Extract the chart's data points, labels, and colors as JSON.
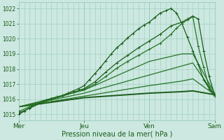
{
  "title": "Pression niveau de la mer( hPa )",
  "ylabel_values": [
    1015,
    1016,
    1017,
    1018,
    1019,
    1020,
    1021,
    1022
  ],
  "ylim": [
    1014.6,
    1022.4
  ],
  "background_color": "#cce8e0",
  "grid_color": "#99ccbb",
  "line_color_dark": "#1a5c1a",
  "x_ticks": [
    0,
    36,
    72,
    108
  ],
  "x_tick_labels": [
    "Mer",
    "Jeu",
    "Ven",
    "Sam"
  ],
  "total_hours": 108,
  "series": [
    {
      "x": [
        0,
        3,
        6,
        9,
        12,
        15,
        18,
        21,
        24,
        27,
        30,
        33,
        36,
        39,
        42,
        45,
        48,
        51,
        54,
        57,
        60,
        63,
        66,
        69,
        72,
        75,
        78,
        81,
        84,
        87,
        90,
        93,
        96,
        99,
        102,
        105,
        108
      ],
      "y": [
        1015.0,
        1015.2,
        1015.45,
        1015.65,
        1015.8,
        1015.95,
        1016.05,
        1016.15,
        1016.25,
        1016.4,
        1016.55,
        1016.7,
        1016.9,
        1017.3,
        1017.7,
        1018.1,
        1018.55,
        1019.0,
        1019.4,
        1019.7,
        1020.05,
        1020.35,
        1020.65,
        1020.9,
        1021.1,
        1021.4,
        1021.7,
        1021.85,
        1022.0,
        1021.7,
        1021.0,
        1020.1,
        1019.2,
        1018.3,
        1017.3,
        1016.7,
        1016.2
      ],
      "style": "marker",
      "color": "#1a5c1a",
      "lw": 0.9,
      "ms": 2.5
    },
    {
      "x": [
        0,
        6,
        12,
        18,
        24,
        30,
        36,
        42,
        48,
        54,
        60,
        66,
        72,
        78,
        84,
        90,
        93,
        96,
        99,
        102,
        105,
        108
      ],
      "y": [
        1015.1,
        1015.4,
        1015.75,
        1016.0,
        1016.2,
        1016.45,
        1016.7,
        1017.15,
        1017.8,
        1018.4,
        1018.9,
        1019.4,
        1019.85,
        1020.3,
        1020.85,
        1021.1,
        1021.3,
        1021.5,
        1021.3,
        1019.2,
        1017.5,
        1016.3
      ],
      "style": "marker",
      "color": "#1a5c1a",
      "lw": 0.9,
      "ms": 2.5
    },
    {
      "x": [
        0,
        6,
        12,
        18,
        24,
        30,
        36,
        42,
        48,
        54,
        60,
        66,
        72,
        78,
        84,
        87,
        90,
        93,
        96,
        99,
        102,
        105,
        108
      ],
      "y": [
        1015.2,
        1015.5,
        1015.8,
        1016.05,
        1016.25,
        1016.45,
        1016.65,
        1017.0,
        1017.5,
        1018.05,
        1018.5,
        1018.9,
        1019.3,
        1019.7,
        1020.3,
        1020.7,
        1021.0,
        1021.25,
        1021.45,
        1019.5,
        1018.1,
        1016.8,
        1016.2
      ],
      "style": "marker",
      "color": "#267326",
      "lw": 0.9,
      "ms": 2.5
    },
    {
      "x": [
        0,
        36,
        72,
        90,
        96,
        108
      ],
      "y": [
        1015.5,
        1016.1,
        1016.4,
        1016.5,
        1016.55,
        1016.3
      ],
      "style": "line",
      "color": "#1a5c1a",
      "lw": 1.4
    },
    {
      "x": [
        0,
        36,
        72,
        90,
        96,
        108
      ],
      "y": [
        1015.5,
        1016.2,
        1016.9,
        1017.2,
        1017.35,
        1016.3
      ],
      "style": "line",
      "color": "#267326",
      "lw": 0.9
    },
    {
      "x": [
        0,
        36,
        72,
        90,
        96,
        108
      ],
      "y": [
        1015.5,
        1016.4,
        1017.6,
        1018.2,
        1018.4,
        1016.3
      ],
      "style": "line",
      "color": "#267326",
      "lw": 0.9
    },
    {
      "x": [
        0,
        36,
        72,
        90,
        96,
        108
      ],
      "y": [
        1015.5,
        1016.6,
        1018.5,
        1019.0,
        1019.0,
        1016.4
      ],
      "style": "line",
      "color": "#267326",
      "lw": 0.9
    }
  ]
}
